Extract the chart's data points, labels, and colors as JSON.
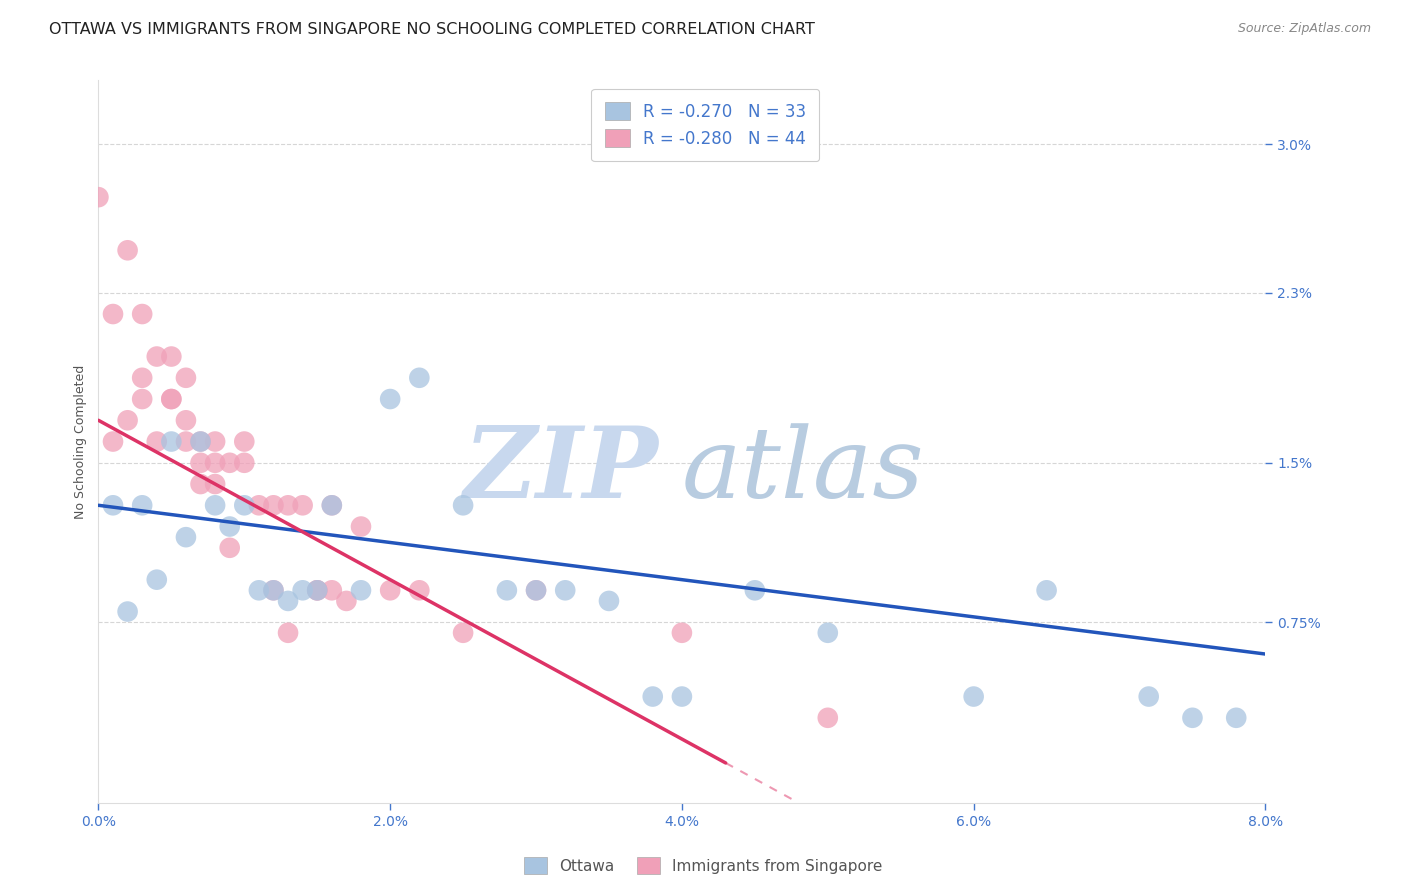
{
  "title": "OTTAWA VS IMMIGRANTS FROM SINGAPORE NO SCHOOLING COMPLETED CORRELATION CHART",
  "source": "Source: ZipAtlas.com",
  "xlabel_ticks": [
    "0.0%",
    "2.0%",
    "4.0%",
    "6.0%",
    "8.0%"
  ],
  "xlabel_tick_vals": [
    0.0,
    0.02,
    0.04,
    0.06,
    0.08
  ],
  "ylabel": "No Schooling Completed",
  "ylabel_ticks": [
    "0.75%",
    "1.5%",
    "2.3%",
    "3.0%"
  ],
  "ylabel_tick_vals": [
    0.0075,
    0.015,
    0.023,
    0.03
  ],
  "xlim": [
    0.0,
    0.08
  ],
  "ylim": [
    -0.001,
    0.033
  ],
  "ottawa_R": -0.27,
  "ottawa_N": 33,
  "singapore_R": -0.28,
  "singapore_N": 44,
  "ottawa_color": "#a8c4e0",
  "singapore_color": "#f0a0b8",
  "ottawa_line_color": "#2255bb",
  "singapore_line_color": "#dd3366",
  "watermark_zip": "ZIP",
  "watermark_atlas": "atlas",
  "watermark_color_zip": "#c8d8ee",
  "watermark_color_atlas": "#b8cce0",
  "background_color": "#ffffff",
  "grid_color": "#cccccc",
  "tick_color": "#4477cc",
  "title_fontsize": 11.5,
  "axis_label_fontsize": 9,
  "tick_label_fontsize": 10,
  "legend_fontsize": 12,
  "ottawa_x": [
    0.001,
    0.002,
    0.003,
    0.004,
    0.005,
    0.006,
    0.007,
    0.008,
    0.009,
    0.01,
    0.011,
    0.012,
    0.013,
    0.014,
    0.015,
    0.016,
    0.018,
    0.02,
    0.022,
    0.025,
    0.028,
    0.03,
    0.032,
    0.035,
    0.038,
    0.04,
    0.045,
    0.05,
    0.06,
    0.065,
    0.072,
    0.075,
    0.078
  ],
  "ottawa_y": [
    0.013,
    0.008,
    0.013,
    0.0095,
    0.016,
    0.0115,
    0.016,
    0.013,
    0.012,
    0.013,
    0.009,
    0.009,
    0.0085,
    0.009,
    0.009,
    0.013,
    0.009,
    0.018,
    0.019,
    0.013,
    0.009,
    0.009,
    0.009,
    0.0085,
    0.004,
    0.004,
    0.009,
    0.007,
    0.004,
    0.009,
    0.004,
    0.003,
    0.003
  ],
  "singapore_x": [
    0.0,
    0.001,
    0.001,
    0.002,
    0.002,
    0.003,
    0.003,
    0.003,
    0.004,
    0.004,
    0.005,
    0.005,
    0.005,
    0.006,
    0.006,
    0.006,
    0.007,
    0.007,
    0.007,
    0.008,
    0.008,
    0.008,
    0.009,
    0.009,
    0.01,
    0.01,
    0.011,
    0.012,
    0.012,
    0.013,
    0.013,
    0.014,
    0.015,
    0.015,
    0.016,
    0.016,
    0.017,
    0.018,
    0.02,
    0.022,
    0.025,
    0.03,
    0.04,
    0.05
  ],
  "singapore_y": [
    0.0275,
    0.022,
    0.016,
    0.025,
    0.017,
    0.022,
    0.019,
    0.018,
    0.02,
    0.016,
    0.02,
    0.018,
    0.018,
    0.019,
    0.017,
    0.016,
    0.016,
    0.015,
    0.014,
    0.016,
    0.015,
    0.014,
    0.015,
    0.011,
    0.016,
    0.015,
    0.013,
    0.013,
    0.009,
    0.013,
    0.007,
    0.013,
    0.009,
    0.009,
    0.013,
    0.009,
    0.0085,
    0.012,
    0.009,
    0.009,
    0.007,
    0.009,
    0.007,
    0.003
  ],
  "ottawa_line_x0": 0.0,
  "ottawa_line_y0": 0.013,
  "ottawa_line_x1": 0.08,
  "ottawa_line_y1": 0.006,
  "singapore_line_x0": 0.0,
  "singapore_line_y0": 0.017,
  "singapore_line_x1": 0.048,
  "singapore_line_y1": -0.001
}
